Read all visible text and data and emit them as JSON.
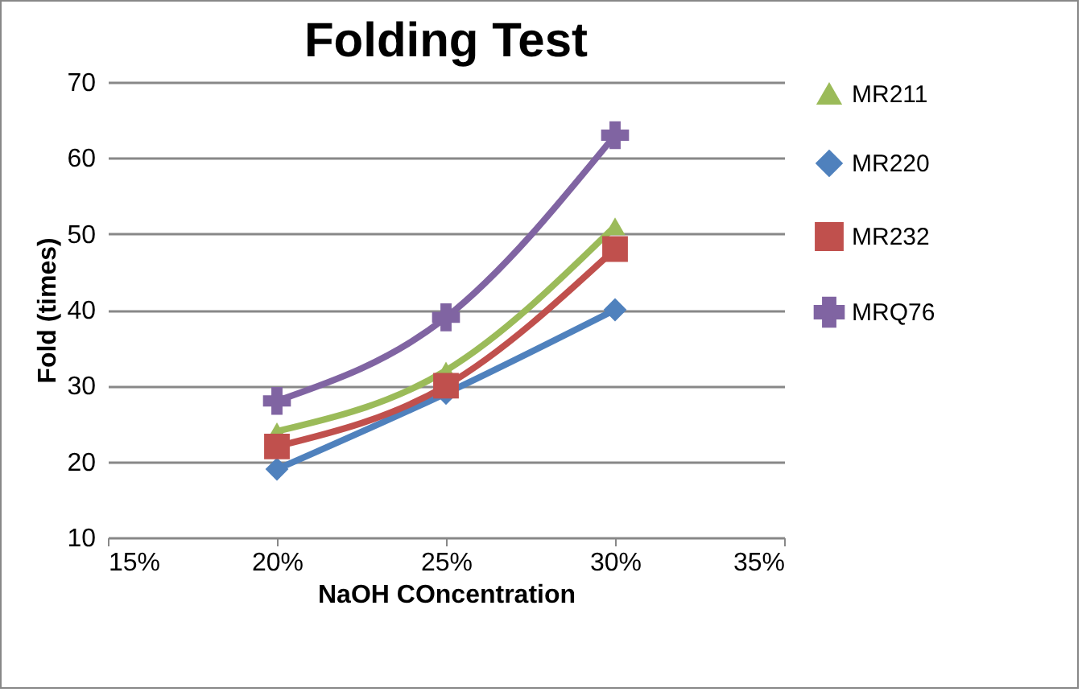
{
  "chart_data": {
    "type": "line",
    "title": "Folding Test",
    "xlabel": "NaOH COncentration",
    "ylabel": "Fold (times)",
    "x": [
      20,
      25,
      30
    ],
    "series": [
      {
        "name": "MR211",
        "color": "#9bbb59",
        "marker": "triangle",
        "values": [
          24,
          32,
          51
        ]
      },
      {
        "name": "MR220",
        "color": "#4f81bd",
        "marker": "diamond",
        "values": [
          19,
          29,
          40
        ]
      },
      {
        "name": "MR232",
        "color": "#c0504d",
        "marker": "square",
        "values": [
          22,
          30,
          48
        ]
      },
      {
        "name": "MRQ76",
        "color": "#8064a2",
        "marker": "cross",
        "values": [
          28,
          39,
          63
        ]
      }
    ],
    "xlim": [
      15,
      35
    ],
    "xticks": [
      {
        "value": 15,
        "label": "15%"
      },
      {
        "value": 20,
        "label": "20%"
      },
      {
        "value": 25,
        "label": "25%"
      },
      {
        "value": 30,
        "label": "30%"
      },
      {
        "value": 35,
        "label": "35%"
      }
    ],
    "ylim": [
      10,
      70
    ],
    "yticks": [
      10,
      20,
      30,
      40,
      50,
      60,
      70
    ],
    "grid": "y",
    "legend": "right"
  }
}
